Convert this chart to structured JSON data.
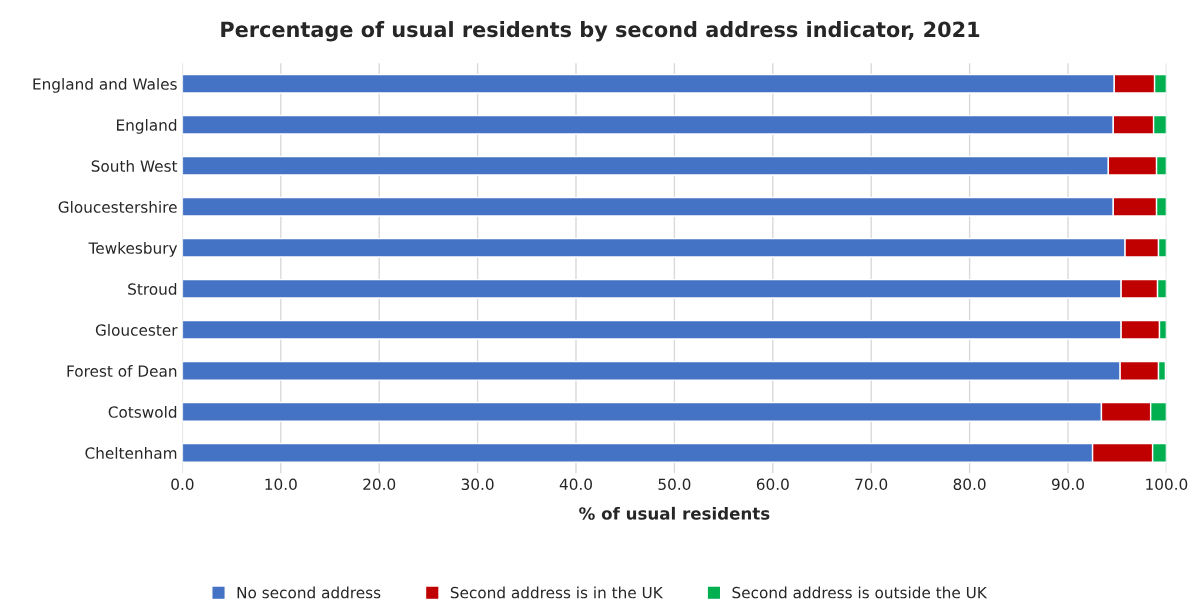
{
  "chart_data": {
    "type": "bar",
    "orientation": "horizontal",
    "stacked": true,
    "title": "Percentage of usual residents by second address indicator, 2021",
    "xlabel": "% of usual residents",
    "categories": [
      "England and Wales",
      "England",
      "South West",
      "Gloucestershire",
      "Tewkesbury",
      "Stroud",
      "Gloucester",
      "Forest of Dean",
      "Cotswold",
      "Cheltenham"
    ],
    "series": [
      {
        "name": "No second address",
        "color": "#4472c4",
        "values": [
          94.7,
          94.6,
          94.1,
          94.6,
          95.8,
          95.4,
          95.4,
          95.3,
          93.4,
          92.5
        ]
      },
      {
        "name": "Second address is in the UK",
        "color": "#c00000",
        "values": [
          4.1,
          4.1,
          4.9,
          4.4,
          3.4,
          3.7,
          3.9,
          3.9,
          5.0,
          6.1
        ]
      },
      {
        "name": "Second address is outside the UK",
        "color": "#00b050",
        "values": [
          1.2,
          1.3,
          1.0,
          1.0,
          0.8,
          0.9,
          0.7,
          0.7,
          1.6,
          1.4
        ]
      }
    ],
    "xlim": [
      0,
      100
    ],
    "xticks": [
      {
        "value": 0,
        "label": "0.0"
      },
      {
        "value": 10,
        "label": "10.0"
      },
      {
        "value": 20,
        "label": "20.0"
      },
      {
        "value": 30,
        "label": "30.0"
      },
      {
        "value": 40,
        "label": "40.0"
      },
      {
        "value": 50,
        "label": "50.0"
      },
      {
        "value": 60,
        "label": "60.0"
      },
      {
        "value": 70,
        "label": "70.0"
      },
      {
        "value": 80,
        "label": "80.0"
      },
      {
        "value": 90,
        "label": "90.0"
      },
      {
        "value": 100,
        "label": "100.0"
      }
    ],
    "grid": "x",
    "legend": "bottom"
  }
}
